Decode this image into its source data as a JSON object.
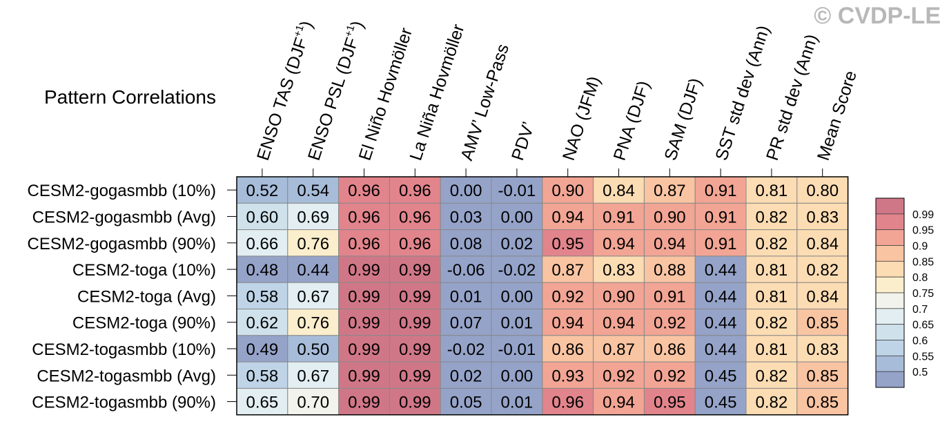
{
  "watermark": "© CVDP-LE",
  "colors": {
    "scale": [
      "#95a3c9",
      "#a7bcd9",
      "#bfd4e7",
      "#cfe2ec",
      "#e2eef2",
      "#f2f3ec",
      "#fbeecc",
      "#fcdcb3",
      "#f9c4a2",
      "#f2a594",
      "#e2848c",
      "#d07787"
    ],
    "cell_border": "#888888",
    "text": "#000000"
  },
  "chart_data": {
    "type": "heatmap",
    "title": "Pattern Correlations",
    "columns": [
      {
        "label": "ENSO TAS (DJF",
        "sup": "+1",
        "suffix": ")"
      },
      {
        "label": "ENSO PSL (DJF",
        "sup": "+1",
        "suffix": ")"
      },
      {
        "label": "El Niño Hovmöller"
      },
      {
        "label": "La Niña Hovmöller"
      },
      {
        "label": "AMV’ Low-Pass"
      },
      {
        "label": "PDV’"
      },
      {
        "label": "NAO (JFM)"
      },
      {
        "label": "PNA (DJF)"
      },
      {
        "label": "SAM (DJF)"
      },
      {
        "label": "SST std dev (Ann)"
      },
      {
        "label": "PR std dev (Ann)"
      },
      {
        "label": "Mean Score"
      }
    ],
    "rows": [
      "CESM2-gogasmbb (10%)",
      "CESM2-gogasmbb (Avg)",
      "CESM2-gogasmbb (90%)",
      "CESM2-toga (10%)",
      "CESM2-toga (Avg)",
      "CESM2-toga (90%)",
      "CESM2-togasmbb (10%)",
      "CESM2-togasmbb (Avg)",
      "CESM2-togasmbb (90%)"
    ],
    "cells": [
      [
        "0.52",
        "0.54",
        "0.96",
        "0.96",
        "0.00",
        "-0.01",
        "0.90",
        "0.84",
        "0.87",
        "0.91",
        "0.81",
        "0.80"
      ],
      [
        "0.60",
        "0.69",
        "0.96",
        "0.96",
        "0.03",
        "0.00",
        "0.94",
        "0.91",
        "0.90",
        "0.91",
        "0.82",
        "0.83"
      ],
      [
        "0.66",
        "0.76",
        "0.96",
        "0.96",
        "0.08",
        "0.02",
        "0.95",
        "0.94",
        "0.94",
        "0.91",
        "0.82",
        "0.84"
      ],
      [
        "0.48",
        "0.44",
        "0.99",
        "0.99",
        "-0.06",
        "-0.02",
        "0.87",
        "0.83",
        "0.88",
        "0.44",
        "0.81",
        "0.82"
      ],
      [
        "0.58",
        "0.67",
        "0.99",
        "0.99",
        "0.01",
        "0.00",
        "0.92",
        "0.90",
        "0.91",
        "0.44",
        "0.81",
        "0.84"
      ],
      [
        "0.62",
        "0.76",
        "0.99",
        "0.99",
        "0.07",
        "0.01",
        "0.94",
        "0.94",
        "0.92",
        "0.44",
        "0.82",
        "0.85"
      ],
      [
        "0.49",
        "0.50",
        "0.99",
        "0.99",
        "-0.02",
        "-0.01",
        "0.86",
        "0.87",
        "0.86",
        "0.44",
        "0.81",
        "0.83"
      ],
      [
        "0.58",
        "0.67",
        "0.99",
        "0.99",
        "0.02",
        "0.00",
        "0.93",
        "0.92",
        "0.92",
        "0.45",
        "0.82",
        "0.85"
      ],
      [
        "0.65",
        "0.70",
        "0.99",
        "0.99",
        "0.05",
        "0.01",
        "0.96",
        "0.94",
        "0.95",
        "0.45",
        "0.82",
        "0.85"
      ]
    ],
    "colorbar": {
      "levels": [
        0.5,
        0.55,
        0.6,
        0.65,
        0.7,
        0.75,
        0.8,
        0.85,
        0.9,
        0.95,
        0.99
      ],
      "labels": [
        "0.5",
        "0.55",
        "0.6",
        "0.65",
        "0.7",
        "0.75",
        "0.8",
        "0.85",
        "0.9",
        "0.95",
        "0.99"
      ]
    }
  }
}
